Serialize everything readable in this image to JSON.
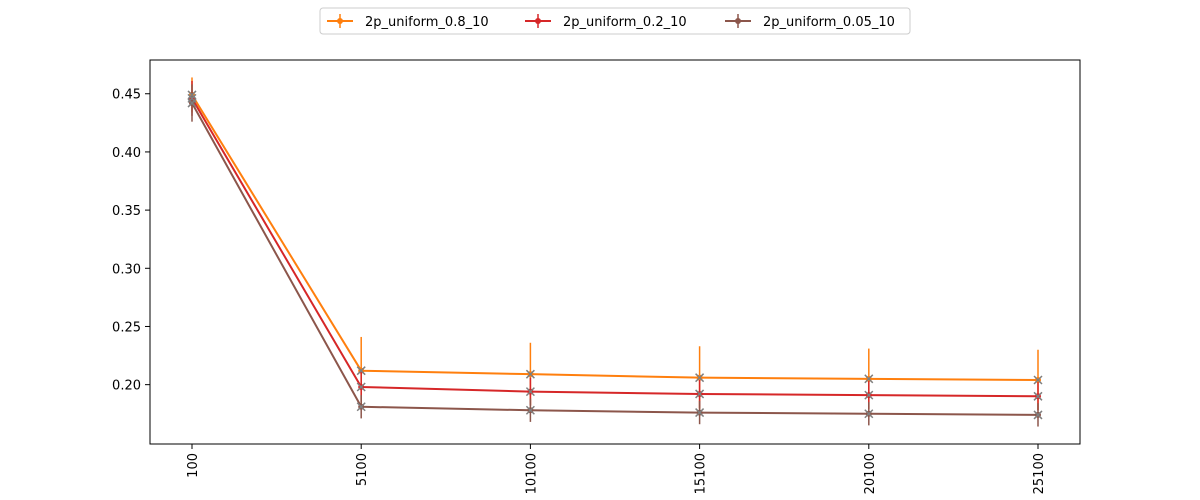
{
  "chart_data": {
    "type": "line",
    "title": "",
    "xlabel": "",
    "ylabel": "",
    "categories": [
      "100",
      "5100",
      "10100",
      "15100",
      "20100",
      "25100"
    ],
    "ylim": [
      0.149,
      0.479
    ],
    "yticks": [
      0.2,
      0.25,
      0.3,
      0.35,
      0.4,
      0.45
    ],
    "ytick_labels": [
      "0.20",
      "0.25",
      "0.30",
      "0.35",
      "0.40",
      "0.45"
    ],
    "legend_position": "top-center",
    "grid": false,
    "series": [
      {
        "name": "2p_uniform_0.8_10",
        "color": "#ff7f0e",
        "values": [
          0.449,
          0.212,
          0.209,
          0.206,
          0.205,
          0.204
        ],
        "errors": [
          0.015,
          0.029,
          0.027,
          0.027,
          0.026,
          0.026
        ]
      },
      {
        "name": "2p_uniform_0.2_10",
        "color": "#d62728",
        "values": [
          0.446,
          0.198,
          0.194,
          0.192,
          0.191,
          0.19
        ],
        "errors": [
          0.015,
          0.013,
          0.012,
          0.012,
          0.012,
          0.012
        ]
      },
      {
        "name": "2p_uniform_0.05_10",
        "color": "#8c564b",
        "values": [
          0.442,
          0.181,
          0.178,
          0.176,
          0.175,
          0.174
        ],
        "errors": [
          0.016,
          0.01,
          0.01,
          0.01,
          0.01,
          0.01
        ]
      }
    ],
    "overlay_marker_color": "#7f7f7f",
    "overlay_series": [
      {
        "values": [
          0.449,
          0.212,
          0.209,
          0.206,
          0.205,
          0.204
        ]
      },
      {
        "values": [
          0.446,
          0.198,
          0.194,
          0.192,
          0.191,
          0.19
        ]
      },
      {
        "values": [
          0.442,
          0.181,
          0.178,
          0.176,
          0.175,
          0.174
        ]
      }
    ]
  }
}
